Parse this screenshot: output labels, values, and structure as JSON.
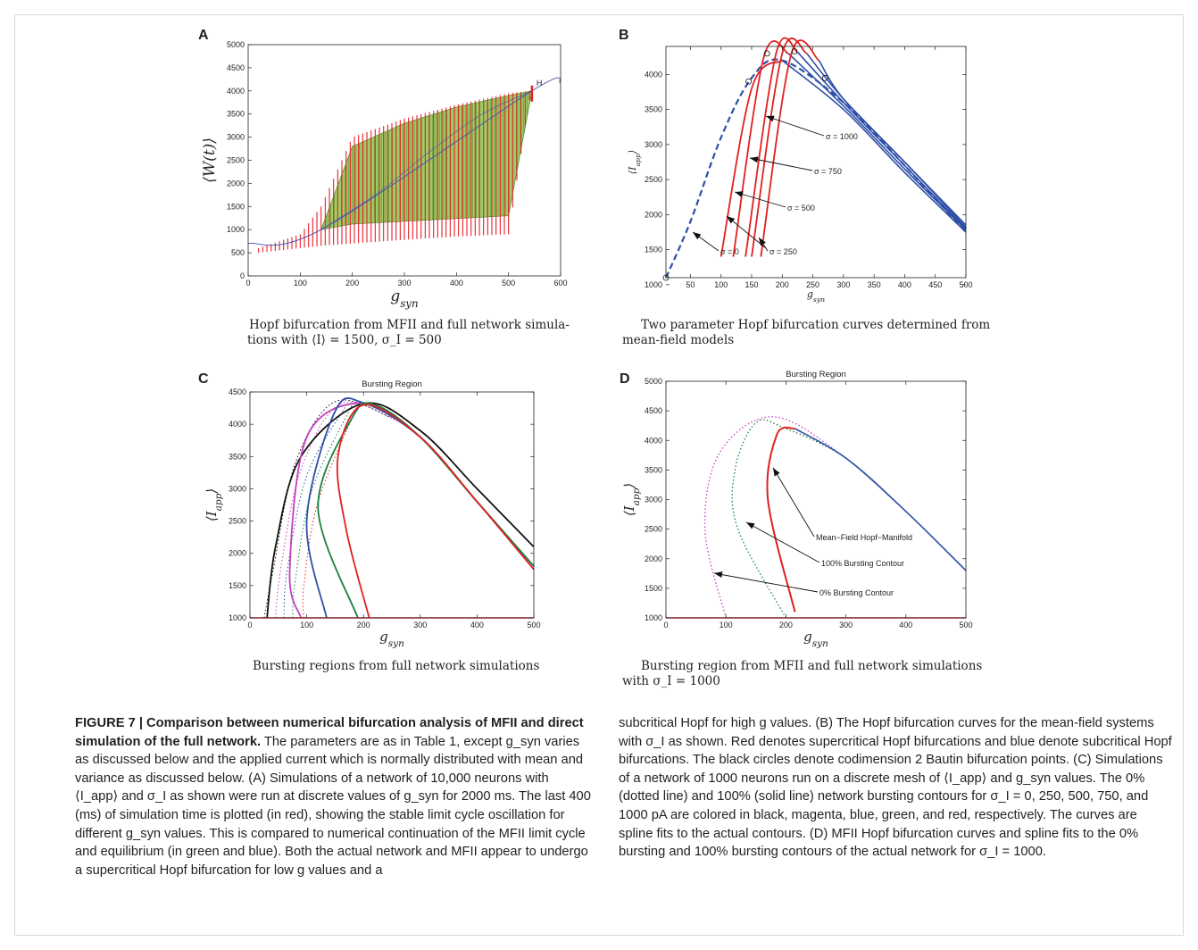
{
  "panels": {
    "A": {
      "label": "A",
      "ylabel": "⟨W(t)⟩",
      "xlabel": "g_syn",
      "xticks": [
        "0",
        "100",
        "200",
        "300",
        "400",
        "500",
        "600"
      ],
      "yticks": [
        "0",
        "500",
        "1000",
        "1500",
        "2000",
        "2500",
        "3000",
        "3500",
        "4000",
        "4500",
        "5000"
      ],
      "marker": "H",
      "subcaption_1": "Hopf bifurcation from MFII and full network simula-",
      "subcaption_2": "tions with ⟨I⟩ = 1500, σ_I = 500"
    },
    "B": {
      "label": "B",
      "ylabel": "⟨I_app⟩",
      "xlabel": "g_syn",
      "xticks": [
        "50",
        "100",
        "150",
        "200",
        "250",
        "300",
        "350",
        "400",
        "450",
        "500"
      ],
      "yticks": [
        "1000",
        "1500",
        "2000",
        "2500",
        "3000",
        "3500",
        "4000"
      ],
      "annotations": [
        "σ = 1000",
        "σ = 750",
        "σ = 500",
        "σ = 250",
        "σ = 0"
      ],
      "subcaption_1": "Two parameter Hopf bifurcation curves determined from",
      "subcaption_2": "mean-field models"
    },
    "C": {
      "label": "C",
      "title": "Bursting Region",
      "ylabel": "⟨I_app⟩",
      "xlabel": "g_syn",
      "xticks": [
        "0",
        "100",
        "200",
        "300",
        "400",
        "500"
      ],
      "yticks": [
        "1000",
        "1500",
        "2000",
        "2500",
        "3000",
        "3500",
        "4000",
        "4500"
      ],
      "subcaption_1": "Bursting regions from full network simulations"
    },
    "D": {
      "label": "D",
      "title": "Bursting Region",
      "ylabel": "⟨I_app⟩",
      "xlabel": "g_syn",
      "xticks": [
        "0",
        "100",
        "200",
        "300",
        "400",
        "500"
      ],
      "yticks": [
        "1000",
        "1500",
        "2000",
        "2500",
        "3000",
        "3500",
        "4000",
        "4500",
        "5000"
      ],
      "annotations": [
        "Mean−Field Hopf−Manifold",
        "100% Bursting Contour",
        "0% Bursting Contour"
      ],
      "subcaption_1": "Bursting region from MFII and full network simulations",
      "subcaption_2": "with σ_I = 1000"
    }
  },
  "caption": {
    "figure_label": "FIGURE 7 | Comparison between numerical bifurcation analysis of MFII and direct simulation of the full network.",
    "left_text": " The parameters are as in Table 1, except g_syn varies as discussed below and the applied current which is normally distributed with mean and variance as discussed below. (A) Simulations of a network of 10,000 neurons with ⟨I_app⟩ and σ_I as shown were run at discrete values of g_syn for 2000 ms. The last 400 (ms) of simulation time is plotted (in red), showing the stable limit cycle oscillation for different g_syn values. This is compared to numerical continuation of the MFII limit cycle and equilibrium (in green and blue). Both the actual network and MFII appear to undergo a supercritical Hopf bifurcation for low g values and a",
    "right_text": "subcritical Hopf for high g values. (B) The Hopf bifurcation curves for the mean-field systems with σ_I as shown. Red denotes supercritical Hopf bifurcations and blue denote subcritical Hopf bifurcations. The black circles denote codimension 2 Bautin bifurcation points. (C) Simulations of a network of 1000 neurons run on a discrete mesh of ⟨I_app⟩ and g_syn values. The 0% (dotted line) and 100% (solid line) network bursting contours for σ_I = 0, 250, 500, 750, and 1000 pA are colored in black, magenta, blue, green, and red, respectively. The curves are spline fits to the actual contours. (D) MFII Hopf bifurcation curves and spline fits to the 0% bursting and 100% bursting contours of the actual network for σ_I = 1000."
  },
  "chart_data": [
    {
      "panel": "A",
      "type": "line",
      "xlim": [
        0,
        600
      ],
      "ylim": [
        0,
        5000
      ],
      "hopf_point": {
        "g": 545,
        "W": 4000
      },
      "series": [
        {
          "name": "",
          "role": "MFII equilibrium (blue)",
          "x": [
            0,
            140,
            545,
            600
          ],
          "y": [
            700,
            1000,
            4000,
            4180
          ]
        },
        {
          "name": "",
          "role": "MFII limit cycle envelope (green)",
          "x": [
            140,
            200,
            300,
            400,
            500,
            545
          ],
          "upper": [
            1000,
            2800,
            3300,
            3650,
            3900,
            4000
          ],
          "lower": [
            1000,
            1120,
            1180,
            1240,
            1300,
            4000
          ]
        },
        {
          "name": "",
          "role": "network oscillation range (red)",
          "x": [
            20,
            60,
            100,
            140,
            200,
            300,
            400,
            500,
            540
          ],
          "max": [
            600,
            750,
            900,
            1500,
            3000,
            3400,
            3700,
            3950,
            4000
          ],
          "min": [
            500,
            550,
            600,
            650,
            700,
            780,
            850,
            900,
            3800
          ]
        }
      ]
    },
    {
      "panel": "B",
      "type": "line",
      "xlim": [
        10,
        500
      ],
      "ylim": [
        1100,
        4200
      ],
      "series": [
        {
          "name": "σ = 0",
          "x": [
            100,
            150,
            200,
            300,
            400,
            500
          ],
          "y": [
            1400,
            3800,
            4200,
            3500,
            2600,
            1750
          ]
        },
        {
          "name": "σ = 250",
          "x": [
            120,
            170,
            210,
            300,
            400,
            500
          ],
          "y": [
            1400,
            4250,
            4300,
            3550,
            2650,
            1780
          ]
        },
        {
          "name": "σ = 500",
          "x": [
            140,
            190,
            225,
            300,
            400,
            500
          ],
          "y": [
            1400,
            4300,
            4320,
            3600,
            2700,
            1800
          ]
        },
        {
          "name": "σ = 750",
          "x": [
            150,
            200,
            240,
            300,
            400,
            500
          ],
          "y": [
            1400,
            4300,
            4300,
            3650,
            2750,
            1820
          ]
        },
        {
          "name": "σ = 1000",
          "x": [
            165,
            215,
            260,
            300,
            400,
            500
          ],
          "y": [
            1400,
            4300,
            4200,
            3650,
            2750,
            1850
          ]
        },
        {
          "name": "",
          "role": "dashed mean-field",
          "x": [
            10,
            50,
            100,
            150,
            200,
            300,
            400,
            500
          ],
          "y": [
            1100,
            1900,
            3100,
            3950,
            4200,
            3600,
            2700,
            1750
          ]
        }
      ]
    },
    {
      "panel": "C",
      "type": "line",
      "xlim": [
        0,
        500
      ],
      "ylim": [
        1000,
        4500
      ],
      "series": [
        {
          "name": "",
          "role": "σ=0 solid (black)",
          "x": [
            30,
            45,
            90,
            200,
            300,
            400,
            500
          ],
          "y": [
            1000,
            2100,
            3500,
            4320,
            3900,
            3000,
            2100
          ]
        },
        {
          "name": "",
          "role": "σ=250 solid (magenta)",
          "x": [
            90,
            70,
            100,
            200,
            300,
            400,
            500
          ],
          "y": [
            1000,
            1700,
            3800,
            4330,
            3800,
            2800,
            1800
          ]
        },
        {
          "name": "",
          "role": "σ=500 solid (blue)",
          "x": [
            135,
            100,
            150,
            200,
            300,
            400,
            500
          ],
          "y": [
            1000,
            2500,
            4200,
            4330,
            3800,
            2800,
            1800
          ]
        },
        {
          "name": "",
          "role": "σ=750 solid (green)",
          "x": [
            190,
            120,
            180,
            220,
            300,
            400,
            500
          ],
          "y": [
            1000,
            2700,
            4100,
            4300,
            3800,
            2800,
            1800
          ]
        },
        {
          "name": "",
          "role": "σ=1000 solid (red)",
          "x": [
            210,
            170,
            155,
            200,
            300,
            400,
            500
          ],
          "y": [
            1000,
            2350,
            3500,
            4300,
            3800,
            2800,
            1750
          ]
        }
      ]
    },
    {
      "panel": "D",
      "type": "line",
      "xlim": [
        0,
        500
      ],
      "ylim": [
        1000,
        5000
      ],
      "series": [
        {
          "name": "",
          "role": "Mean-Field Hopf-Manifold (red/blue)",
          "x": [
            215,
            170,
            185,
            215,
            300,
            400,
            500
          ],
          "y": [
            1100,
            3000,
            4100,
            4200,
            3700,
            2800,
            1800
          ]
        },
        {
          "name": "",
          "role": "100% Bursting Contour (green dotted)",
          "x": [
            200,
            120,
            115,
            150,
            200,
            300,
            400,
            500
          ],
          "y": [
            1000,
            2500,
            3500,
            4300,
            4200,
            3700,
            2800,
            1800
          ]
        },
        {
          "name": "",
          "role": "0% Bursting Contour (magenta dotted)",
          "x": [
            100,
            65,
            90,
            180,
            300,
            400,
            500
          ],
          "y": [
            1000,
            2500,
            3800,
            4400,
            3700,
            2800,
            1800
          ]
        }
      ]
    }
  ]
}
